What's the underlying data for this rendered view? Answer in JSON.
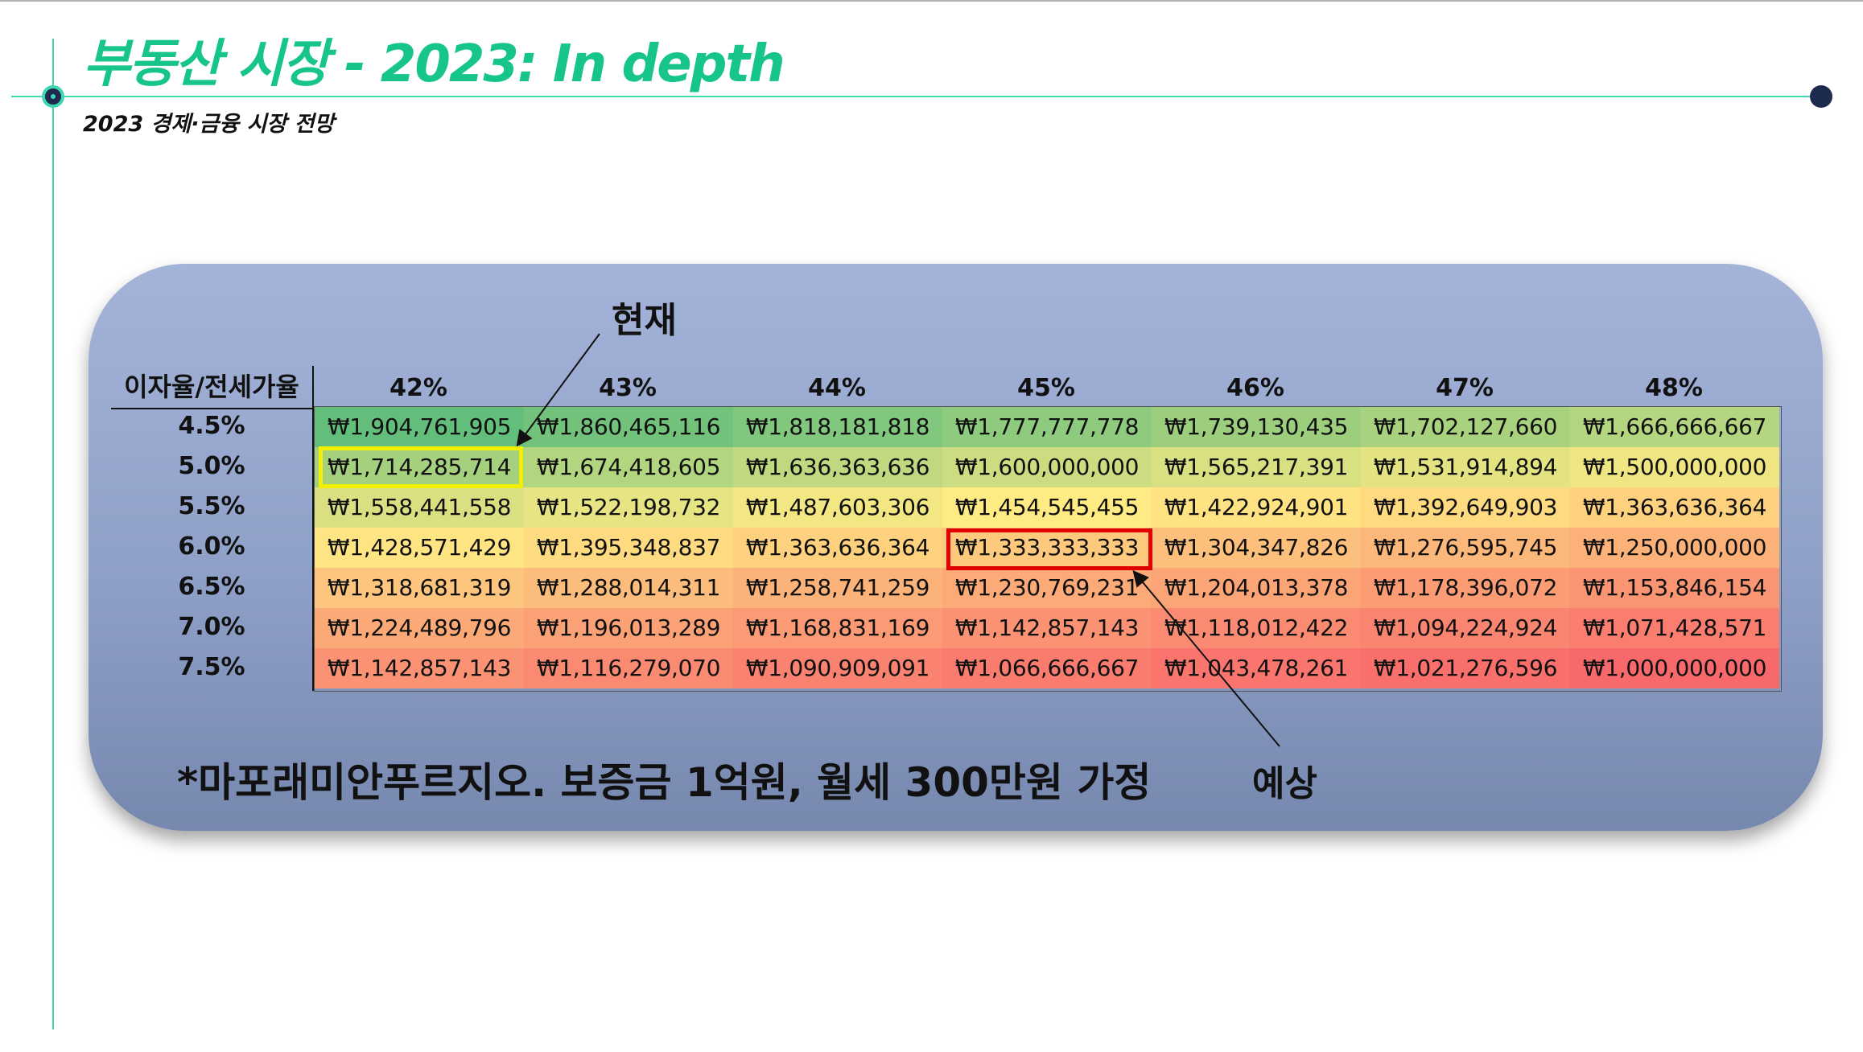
{
  "header": {
    "title": "부동산 시장 - 2023: In depth",
    "subtitle": "2023 경제·금융 시장 전망"
  },
  "annotations": {
    "current_label": "현재",
    "expected_label": "예상",
    "footnote": "*마포래미안푸르지오. 보증금 1억원, 월세 300만원 가정"
  },
  "table": {
    "corner_label": "이자율/전세가율",
    "columns": [
      "42%",
      "43%",
      "44%",
      "45%",
      "46%",
      "47%",
      "48%"
    ],
    "rows": [
      {
        "rate": "4.5%",
        "cells": [
          "₩1,904,761,905",
          "₩1,860,465,116",
          "₩1,818,181,818",
          "₩1,777,777,778",
          "₩1,739,130,435",
          "₩1,702,127,660",
          "₩1,666,666,667"
        ]
      },
      {
        "rate": "5.0%",
        "cells": [
          "₩1,714,285,714",
          "₩1,674,418,605",
          "₩1,636,363,636",
          "₩1,600,000,000",
          "₩1,565,217,391",
          "₩1,531,914,894",
          "₩1,500,000,000"
        ]
      },
      {
        "rate": "5.5%",
        "cells": [
          "₩1,558,441,558",
          "₩1,522,198,732",
          "₩1,487,603,306",
          "₩1,454,545,455",
          "₩1,422,924,901",
          "₩1,392,649,903",
          "₩1,363,636,364"
        ]
      },
      {
        "rate": "6.0%",
        "cells": [
          "₩1,428,571,429",
          "₩1,395,348,837",
          "₩1,363,636,364",
          "₩1,333,333,333",
          "₩1,304,347,826",
          "₩1,276,595,745",
          "₩1,250,000,000"
        ]
      },
      {
        "rate": "6.5%",
        "cells": [
          "₩1,318,681,319",
          "₩1,288,014,311",
          "₩1,258,741,259",
          "₩1,230,769,231",
          "₩1,204,013,378",
          "₩1,178,396,072",
          "₩1,153,846,154"
        ]
      },
      {
        "rate": "7.0%",
        "cells": [
          "₩1,224,489,796",
          "₩1,196,013,289",
          "₩1,168,831,169",
          "₩1,142,857,143",
          "₩1,118,012,422",
          "₩1,094,224,924",
          "₩1,071,428,571"
        ]
      },
      {
        "rate": "7.5%",
        "cells": [
          "₩1,142,857,143",
          "₩1,116,279,070",
          "₩1,090,909,091",
          "₩1,066,666,667",
          "₩1,043,478,261",
          "₩1,021,276,596",
          "₩1,000,000,000"
        ]
      }
    ]
  },
  "colors": {
    "accent": "#17c58a",
    "line": "#3fd7b0",
    "heat_high": "#63be7b",
    "heat_mid": "#ffeb84",
    "heat_low": "#f8696b",
    "current_box": "#f0f000",
    "expected_box": "#e00000"
  }
}
